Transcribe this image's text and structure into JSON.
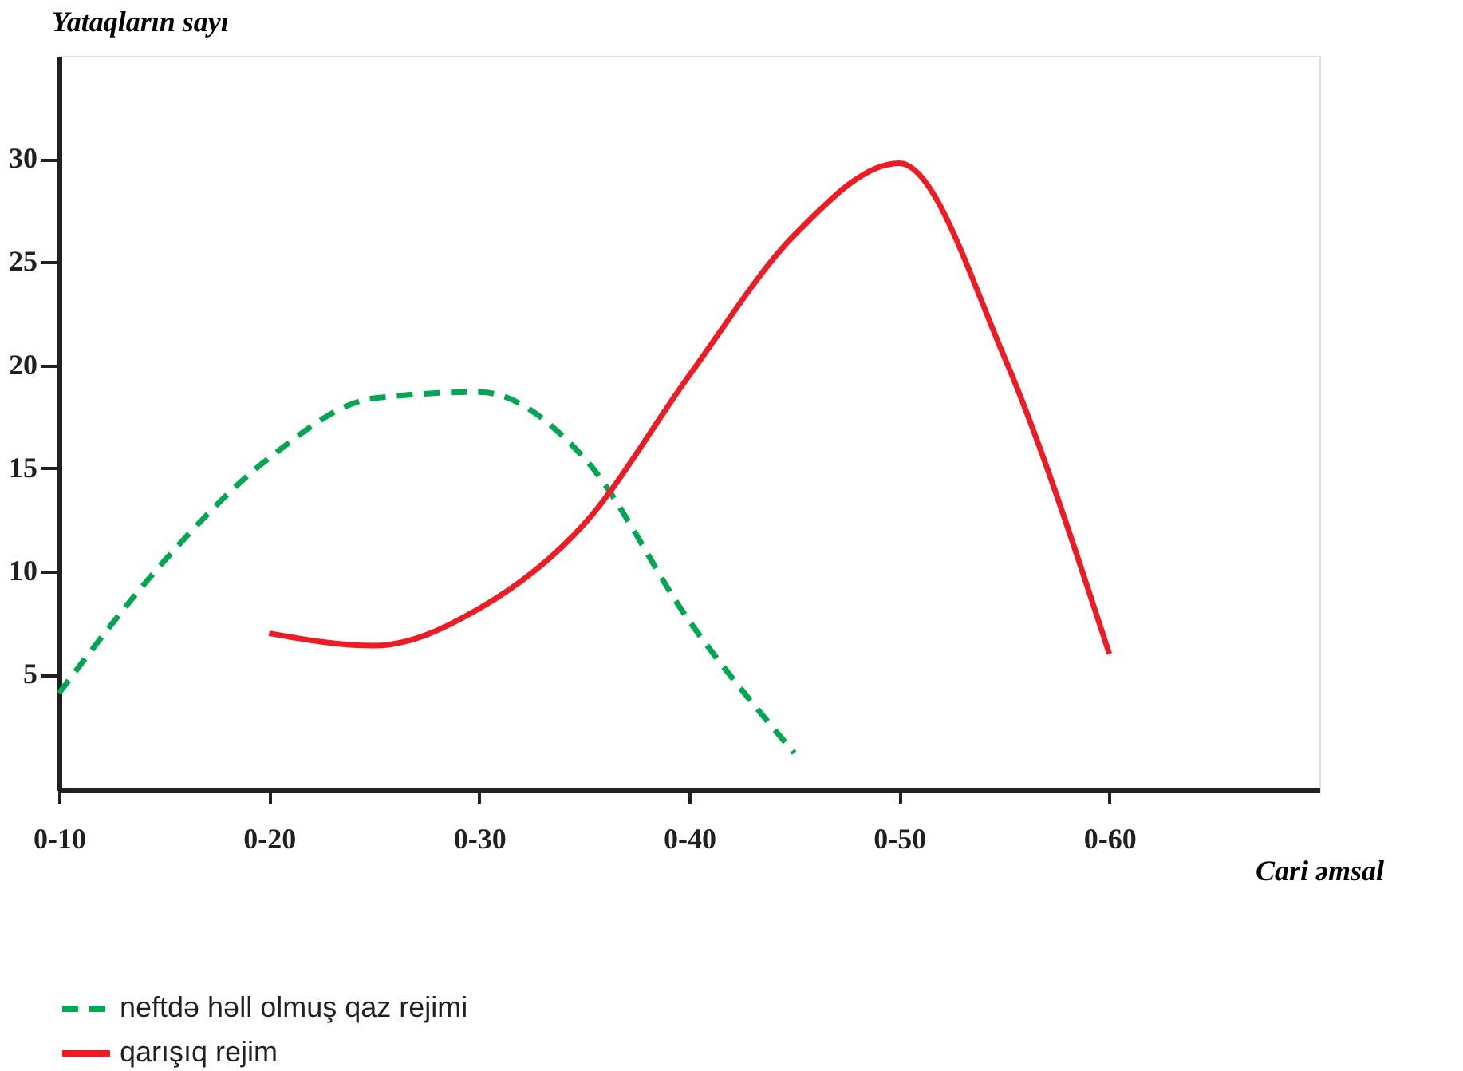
{
  "chart_data": {
    "type": "line",
    "xlabel": "Cari əmsal",
    "ylabel": "Yataqların sayı",
    "categories": [
      "0-10",
      null,
      "0-20",
      null,
      "0-30",
      null,
      "0-40",
      null,
      "0-50",
      null,
      "0-60",
      null,
      null
    ],
    "ylim": [
      -0.6,
      35
    ],
    "yticks": [
      5,
      10,
      15,
      20,
      25,
      30
    ],
    "grid": false,
    "legend": "bottom",
    "marker": "none",
    "series": [
      {
        "name": "neftdə həll olmuş qaz rejimi",
        "color": "#00a651",
        "line_style": "dashed",
        "values": [
          4.1,
          10.5,
          15.5,
          18.4,
          18.7,
          15.5,
          7.6,
          1.2,
          null,
          null,
          null,
          null,
          null
        ]
      },
      {
        "name": "qarışıq rejim",
        "color": "#ed1c24",
        "line_style": "solid",
        "values": [
          null,
          null,
          7.0,
          6.4,
          8.2,
          12.3,
          19.5,
          26.3,
          29.8,
          20.4,
          6.0,
          null,
          null
        ]
      }
    ]
  }
}
